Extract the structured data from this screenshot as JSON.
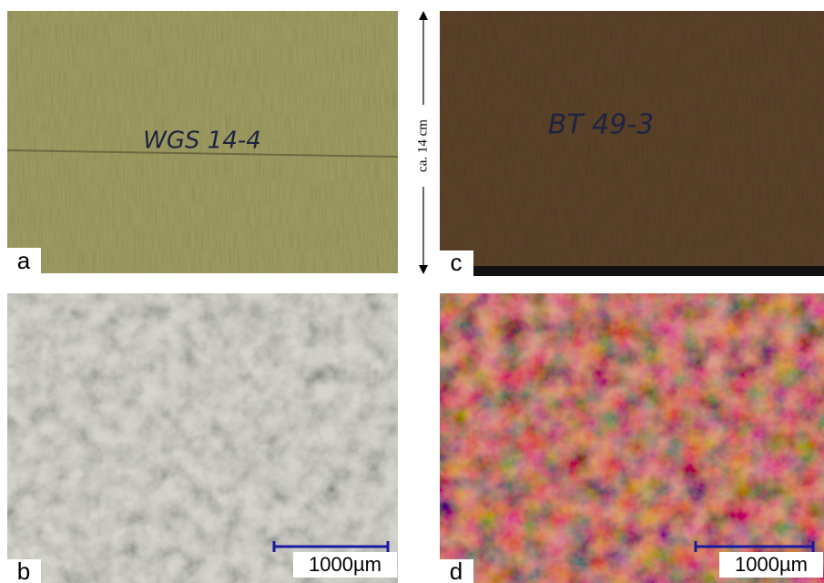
{
  "panels": [
    {
      "label": "a",
      "inscription": "WGS 14-4"
    },
    {
      "label": "b",
      "scale_bar": "1000µm"
    },
    {
      "label": "c",
      "inscription": "BT 49-3"
    },
    {
      "label": "d",
      "scale_bar": "1000µm"
    }
  ],
  "dimension_label": "ca. 14 cm"
}
